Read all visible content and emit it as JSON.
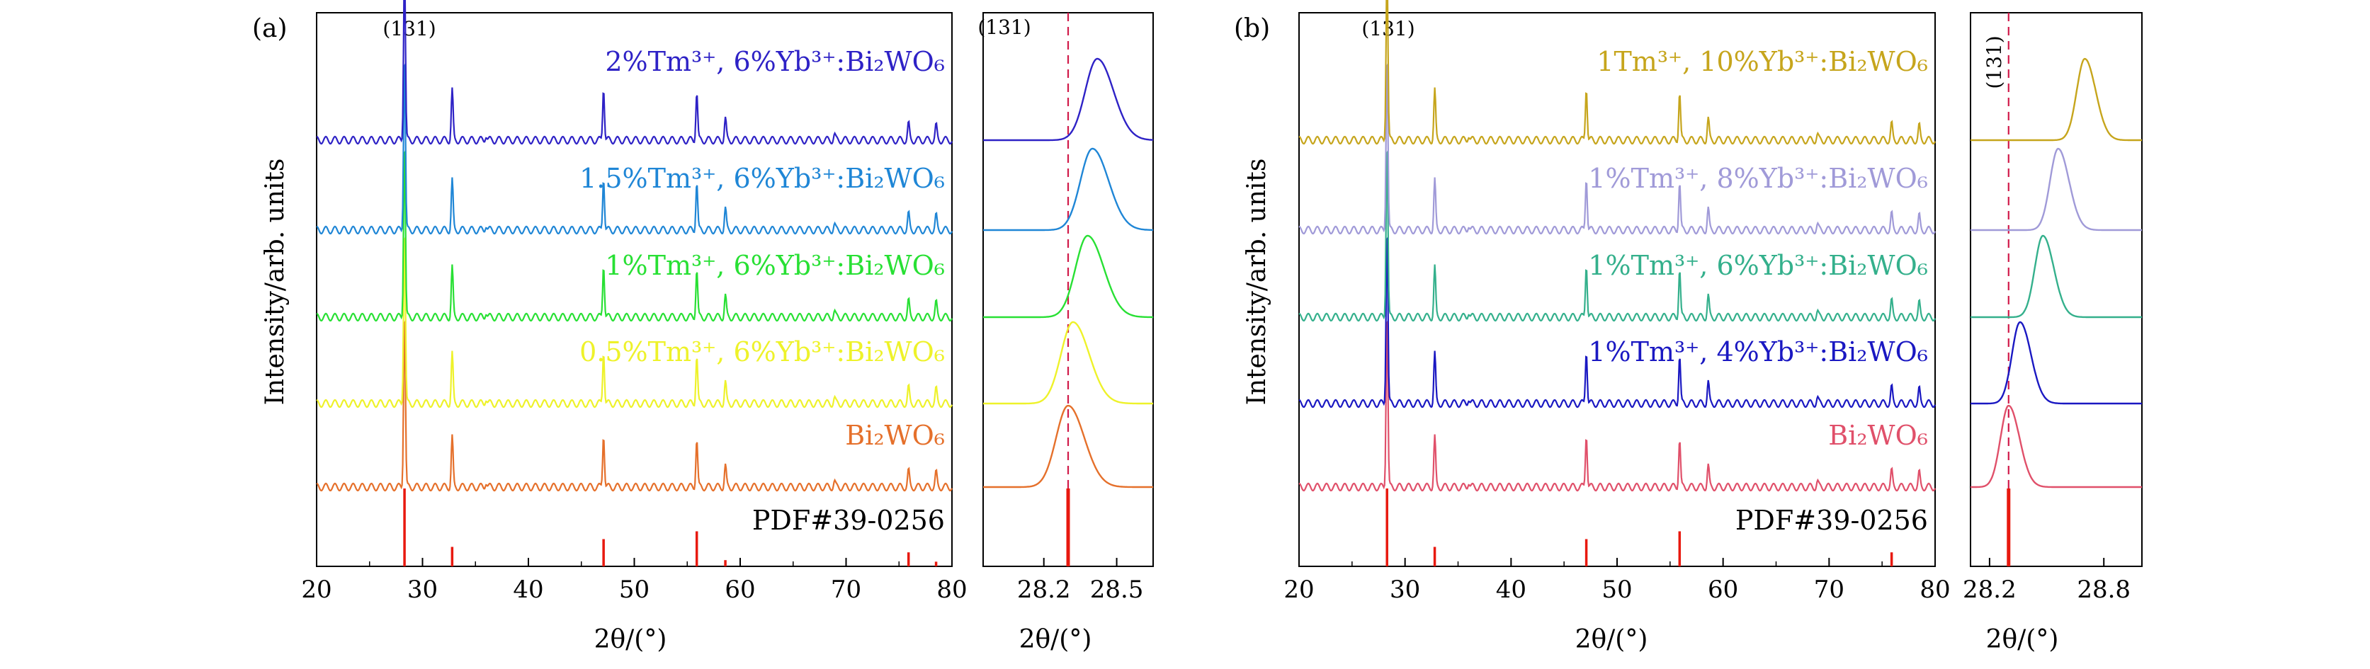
{
  "panels": [
    {
      "panel_label": "(a)",
      "ylabel": "Intensity/arb. units",
      "xlabel": "2θ/(°)",
      "peak_label": "(131)",
      "inset_peak_label": "(131)",
      "inset_xlabel": "2θ/(°)"
    },
    {
      "panel_label": "(b)",
      "ylabel": "Intensity/arb. units",
      "xlabel": "2θ/(°)",
      "peak_label": "(131)",
      "inset_peak_label": "(131)",
      "inset_xlabel": "2θ/(°)"
    }
  ],
  "chart_data": [
    {
      "type": "line",
      "panel": "(a) main",
      "xlabel": "2θ/(°)",
      "ylabel": "Intensity/arb. units",
      "xlim": [
        20,
        80
      ],
      "xticks": [
        "20",
        "30",
        "40",
        "50",
        "60",
        "70",
        "80"
      ],
      "annotation": "(131)",
      "reference": {
        "name": "PDF#39-0256",
        "color": "#e8190f",
        "sticks": [
          [
            28.3,
            1.0
          ],
          [
            32.8,
            0.25
          ],
          [
            47.1,
            0.35
          ],
          [
            55.9,
            0.45
          ],
          [
            58.6,
            0.08
          ],
          [
            75.9,
            0.18
          ],
          [
            78.5,
            0.06
          ]
        ]
      },
      "series": [
        {
          "name": "Bi₂WO₆",
          "color": "#e5702b"
        },
        {
          "name": "0.5%Tm³⁺, 6%Yb³⁺:Bi₂WO₆",
          "color": "#eef22a"
        },
        {
          "name": "1%Tm³⁺, 6%Yb³⁺:Bi₂WO₆",
          "color": "#28e034"
        },
        {
          "name": "1.5%Tm³⁺, 6%Yb³⁺:Bi₂WO₆",
          "color": "#1f86d6"
        },
        {
          "name": "2%Tm³⁺, 6%Yb³⁺:Bi₂WO₆",
          "color": "#2e22c6"
        }
      ],
      "peaks": [
        [
          28.3,
          1.0
        ],
        [
          32.8,
          0.28
        ],
        [
          36.0,
          0.03
        ],
        [
          47.1,
          0.3
        ],
        [
          55.9,
          0.27
        ],
        [
          58.6,
          0.12
        ],
        [
          68.9,
          0.03
        ],
        [
          75.9,
          0.09
        ],
        [
          78.5,
          0.08
        ]
      ]
    },
    {
      "type": "line",
      "panel": "(a) inset",
      "xlabel": "2θ/(°)",
      "xlim": [
        27.95,
        28.65
      ],
      "xticks": [
        "28.2",
        "28.5"
      ],
      "annotation": "(131)",
      "reference_line_x": 28.3,
      "series": [
        {
          "name": "Bi₂WO₆",
          "color": "#e5702b",
          "peak_x": 28.3
        },
        {
          "name": "0.5%Tm³⁺, 6%Yb³⁺:Bi₂WO₆",
          "color": "#eef22a",
          "peak_x": 28.32
        },
        {
          "name": "1%Tm³⁺, 6%Yb³⁺:Bi₂WO₆",
          "color": "#28e034",
          "peak_x": 28.38
        },
        {
          "name": "1.5%Tm³⁺, 6%Yb³⁺:Bi₂WO₆",
          "color": "#1f86d6",
          "peak_x": 28.4
        },
        {
          "name": "2%Tm³⁺, 6%Yb³⁺:Bi₂WO₆",
          "color": "#2e22c6",
          "peak_x": 28.42
        }
      ]
    },
    {
      "type": "line",
      "panel": "(b) main",
      "xlabel": "2θ/(°)",
      "ylabel": "Intensity/arb. units",
      "xlim": [
        20,
        80
      ],
      "xticks": [
        "20",
        "30",
        "40",
        "50",
        "60",
        "70",
        "80"
      ],
      "annotation": "(131)",
      "reference": {
        "name": "PDF#39-0256",
        "color": "#e8190f",
        "sticks": [
          [
            28.3,
            1.0
          ],
          [
            32.8,
            0.25
          ],
          [
            47.1,
            0.35
          ],
          [
            55.9,
            0.45
          ],
          [
            75.9,
            0.18
          ]
        ]
      },
      "series": [
        {
          "name": "Bi₂WO₆",
          "color": "#e0506a"
        },
        {
          "name": "1%Tm³⁺, 4%Yb³⁺:Bi₂WO₆",
          "color": "#1a18c2"
        },
        {
          "name": "1%Tm³⁺, 6%Yb³⁺:Bi₂WO₆",
          "color": "#34b08c"
        },
        {
          "name": "1%Tm³⁺, 8%Yb³⁺:Bi₂WO₆",
          "color": "#a09ad8"
        },
        {
          "name": "1Tm³⁺, 10%Yb³⁺:Bi₂WO₆",
          "color": "#c6a51c"
        }
      ],
      "peaks": [
        [
          28.3,
          1.0
        ],
        [
          32.8,
          0.28
        ],
        [
          36.0,
          0.03
        ],
        [
          47.1,
          0.3
        ],
        [
          55.9,
          0.27
        ],
        [
          58.6,
          0.12
        ],
        [
          68.9,
          0.03
        ],
        [
          75.9,
          0.09
        ],
        [
          78.5,
          0.08
        ]
      ]
    },
    {
      "type": "line",
      "panel": "(b) inset",
      "xlabel": "2θ/(°)",
      "xlim": [
        28.1,
        29.0
      ],
      "xticks": [
        "28.2",
        "28.8"
      ],
      "annotation": "(131)",
      "reference_line_x": 28.3,
      "series": [
        {
          "name": "Bi₂WO₆",
          "color": "#e0506a",
          "peak_x": 28.3
        },
        {
          "name": "1%Tm³⁺, 4%Yb³⁺:Bi₂WO₆",
          "color": "#1a18c2",
          "peak_x": 28.36
        },
        {
          "name": "1%Tm³⁺, 6%Yb³⁺:Bi₂WO₆",
          "color": "#34b08c",
          "peak_x": 28.48
        },
        {
          "name": "1%Tm³⁺, 8%Yb³⁺:Bi₂WO₆",
          "color": "#a09ad8",
          "peak_x": 28.56
        },
        {
          "name": "1Tm³⁺, 10%Yb³⁺:Bi₂WO₆",
          "color": "#c6a51c",
          "peak_x": 28.7
        }
      ]
    }
  ]
}
